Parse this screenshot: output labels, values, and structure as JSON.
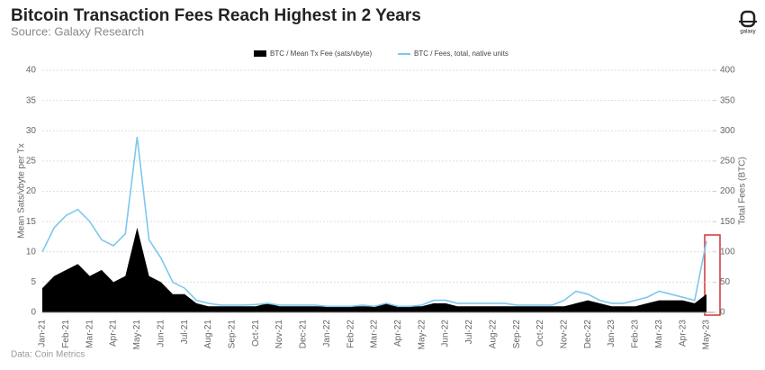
{
  "chart_data": {
    "type": "area-line",
    "title": "Bitcoin Transaction Fees Reach Highest in 2 Years",
    "subtitle": "Source: Galaxy Research",
    "source": "Data: Coin Metrics",
    "logo_text": "galaxy",
    "ylabel": "Mean Sats/vbyte per Tx",
    "y2label": "Total Fees (BTC)",
    "categories": [
      "Jan-21",
      null,
      "Feb-21",
      null,
      "Mar-21",
      null,
      "Apr-21",
      null,
      "May-21",
      null,
      "Jun-21",
      null,
      "Jul-21",
      null,
      "Aug-21",
      null,
      "Sep-21",
      null,
      "Oct-21",
      null,
      "Nov-21",
      null,
      "Dec-21",
      null,
      "Jan-22",
      null,
      "Feb-22",
      null,
      "Mar-22",
      null,
      "Apr-22",
      null,
      "May-22",
      null,
      "Jun-22",
      null,
      "Jul-22",
      null,
      "Aug-22",
      null,
      "Sep-22",
      null,
      "Oct-22",
      null,
      "Nov-22",
      null,
      "Dec-22",
      null,
      "Jan-23",
      null,
      "Feb-23",
      null,
      "Mar-23",
      null,
      "Apr-23",
      null,
      "May-23"
    ],
    "series": [
      {
        "name": "BTC / Mean Tx Fee (sats/vbyte)",
        "color": "#000000",
        "axis": "y",
        "values": [
          4,
          6,
          7,
          8,
          6,
          7,
          5,
          6,
          14,
          6,
          5,
          3,
          3,
          1.5,
          1,
          1,
          1,
          1,
          1,
          1.5,
          1,
          1,
          1,
          1,
          1,
          1,
          1,
          1,
          1,
          1.5,
          1,
          1,
          1,
          1.5,
          1.5,
          1,
          1,
          1,
          1,
          1,
          1,
          1,
          1,
          1,
          1,
          1.5,
          2,
          1.5,
          1,
          1,
          1,
          1.5,
          2,
          2,
          2,
          1.5,
          3
        ]
      },
      {
        "name": "BTC / Fees, total, native units",
        "color": "#7ec8ec",
        "axis": "y2",
        "values": [
          100,
          140,
          160,
          170,
          150,
          120,
          110,
          130,
          290,
          120,
          90,
          50,
          40,
          20,
          15,
          12,
          12,
          12,
          13,
          15,
          12,
          12,
          12,
          12,
          10,
          10,
          10,
          12,
          10,
          15,
          10,
          10,
          12,
          20,
          20,
          15,
          15,
          15,
          15,
          15,
          12,
          12,
          12,
          12,
          20,
          35,
          30,
          20,
          15,
          15,
          20,
          25,
          35,
          30,
          25,
          20,
          118
        ]
      }
    ],
    "ylim": [
      0,
      40
    ],
    "yticks": [
      0,
      5,
      10,
      15,
      20,
      25,
      30,
      35,
      40
    ],
    "y2lim": [
      0,
      400
    ],
    "y2ticks": [
      0,
      50,
      100,
      150,
      200,
      250,
      300,
      350,
      400
    ],
    "grid": true
  }
}
